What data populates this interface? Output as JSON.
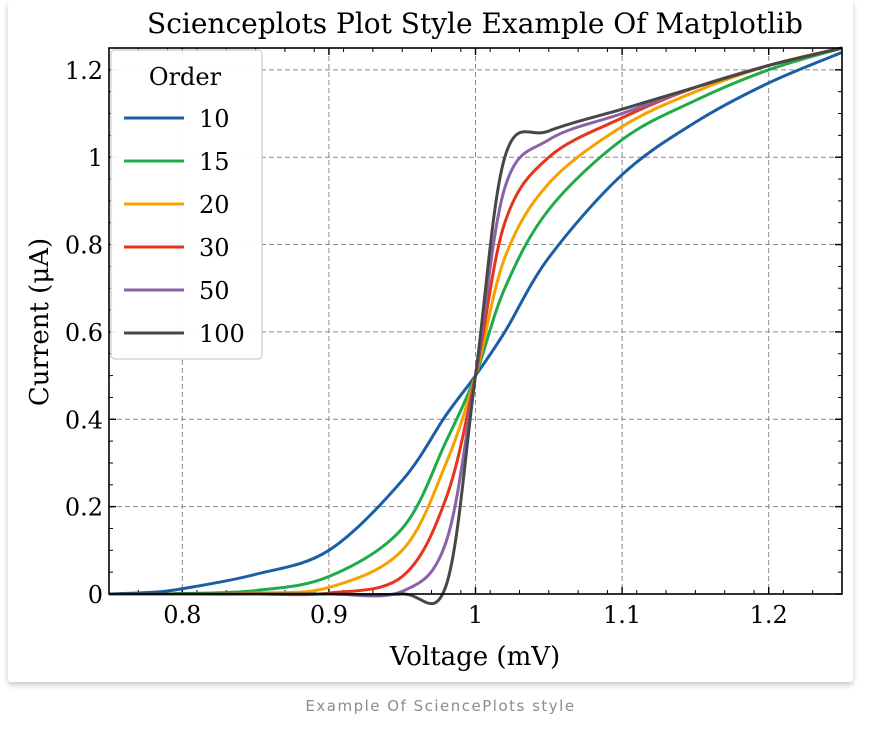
{
  "caption": "Example Of SciencePlots style",
  "chart_data": {
    "type": "line",
    "title": "Scienceplots Plot Style Example Of Matplotlib",
    "xlabel": "Voltage (mV)",
    "ylabel": "Current (μA)",
    "xlim": [
      0.75,
      1.25
    ],
    "ylim": [
      0,
      1.25
    ],
    "xticks": [
      0.8,
      0.9,
      1,
      1.1,
      1.2
    ],
    "xtick_labels": [
      "0.8",
      "0.9",
      "1",
      "1.1",
      "1.2"
    ],
    "yticks": [
      0,
      0.2,
      0.4,
      0.6,
      0.8,
      1,
      1.2
    ],
    "ytick_labels": [
      "0",
      "0.2",
      "0.4",
      "0.6",
      "0.8",
      "1",
      "1.2"
    ],
    "grid": true,
    "legend": {
      "title": "Order",
      "placement": "top-left"
    },
    "series_x": [
      0.75,
      0.78,
      0.8,
      0.85,
      0.9,
      0.95,
      0.98,
      1.0,
      1.02,
      1.05,
      1.1,
      1.15,
      1.2,
      1.25
    ],
    "series": [
      {
        "name": "10",
        "color": "#1a5fa6",
        "values": [
          0.0,
          0.004,
          0.012,
          0.045,
          0.1,
          0.26,
          0.41,
          0.5,
          0.6,
          0.77,
          0.96,
          1.08,
          1.17,
          1.24
        ]
      },
      {
        "name": "15",
        "color": "#21ab48",
        "values": [
          0.0,
          0.0,
          0.001,
          0.008,
          0.04,
          0.15,
          0.35,
          0.5,
          0.7,
          0.88,
          1.04,
          1.13,
          1.2,
          1.25
        ]
      },
      {
        "name": "20",
        "color": "#f5a100",
        "values": [
          0.0,
          0.0,
          0.0,
          0.002,
          0.015,
          0.1,
          0.3,
          0.5,
          0.77,
          0.94,
          1.07,
          1.15,
          1.21,
          1.25
        ]
      },
      {
        "name": "30",
        "color": "#e8341c",
        "values": [
          0.0,
          0.0,
          0.0,
          0.0,
          0.002,
          0.04,
          0.22,
          0.5,
          0.85,
          1.0,
          1.09,
          1.16,
          1.21,
          1.25
        ]
      },
      {
        "name": "50",
        "color": "#8a62a8",
        "values": [
          0.0,
          0.0,
          0.0,
          0.0,
          0.0,
          0.006,
          0.12,
          0.5,
          0.93,
          1.04,
          1.1,
          1.16,
          1.21,
          1.25
        ]
      },
      {
        "name": "100",
        "color": "#474747",
        "values": [
          0.0,
          0.0,
          0.0,
          0.0,
          0.0,
          0.0,
          0.02,
          0.5,
          1.0,
          1.06,
          1.11,
          1.16,
          1.21,
          1.25
        ]
      }
    ]
  }
}
